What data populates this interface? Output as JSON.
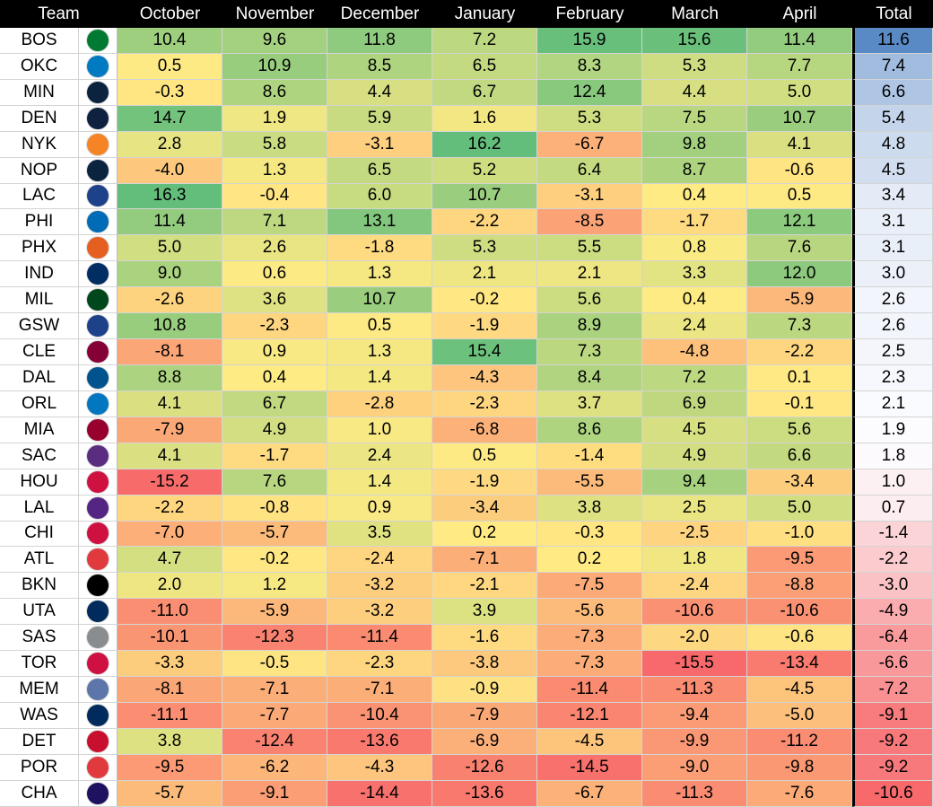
{
  "chart_data": {
    "type": "table",
    "columns": [
      "Team",
      "October",
      "November",
      "December",
      "January",
      "February",
      "March",
      "April",
      "Total"
    ],
    "rows": [
      {
        "team": "BOS",
        "icon": "celtics-logo-icon",
        "color": "#007a33",
        "values": [
          "10.4",
          "9.6",
          "11.8",
          "7.2",
          "15.9",
          "15.6",
          "11.4"
        ],
        "total": "11.6"
      },
      {
        "team": "OKC",
        "icon": "thunder-logo-icon",
        "color": "#007ac1",
        "values": [
          "0.5",
          "10.9",
          "8.5",
          "6.5",
          "8.3",
          "5.3",
          "7.7"
        ],
        "total": "7.4"
      },
      {
        "team": "MIN",
        "icon": "timberwolves-logo-icon",
        "color": "#0c2340",
        "values": [
          "-0.3",
          "8.6",
          "4.4",
          "6.7",
          "12.4",
          "4.4",
          "5.0"
        ],
        "total": "6.6"
      },
      {
        "team": "DEN",
        "icon": "nuggets-logo-icon",
        "color": "#0e2240",
        "values": [
          "14.7",
          "1.9",
          "5.9",
          "1.6",
          "5.3",
          "7.5",
          "10.7"
        ],
        "total": "5.4"
      },
      {
        "team": "NYK",
        "icon": "knicks-logo-icon",
        "color": "#f58426",
        "values": [
          "2.8",
          "5.8",
          "-3.1",
          "16.2",
          "-6.7",
          "9.8",
          "4.1"
        ],
        "total": "4.8"
      },
      {
        "team": "NOP",
        "icon": "pelicans-logo-icon",
        "color": "#0c2340",
        "values": [
          "-4.0",
          "1.3",
          "6.5",
          "5.2",
          "6.4",
          "8.7",
          "-0.6"
        ],
        "total": "4.5"
      },
      {
        "team": "LAC",
        "icon": "clippers-logo-icon",
        "color": "#1d428a",
        "values": [
          "16.3",
          "-0.4",
          "6.0",
          "10.7",
          "-3.1",
          "0.4",
          "0.5"
        ],
        "total": "3.4"
      },
      {
        "team": "PHI",
        "icon": "76ers-logo-icon",
        "color": "#006bb6",
        "values": [
          "11.4",
          "7.1",
          "13.1",
          "-2.2",
          "-8.5",
          "-1.7",
          "12.1"
        ],
        "total": "3.1"
      },
      {
        "team": "PHX",
        "icon": "suns-logo-icon",
        "color": "#e56020",
        "values": [
          "5.0",
          "2.6",
          "-1.8",
          "5.3",
          "5.5",
          "0.8",
          "7.6"
        ],
        "total": "3.1"
      },
      {
        "team": "IND",
        "icon": "pacers-logo-icon",
        "color": "#002d62",
        "values": [
          "9.0",
          "0.6",
          "1.3",
          "2.1",
          "2.1",
          "3.3",
          "12.0"
        ],
        "total": "3.0"
      },
      {
        "team": "MIL",
        "icon": "bucks-logo-icon",
        "color": "#00471b",
        "values": [
          "-2.6",
          "3.6",
          "10.7",
          "-0.2",
          "5.6",
          "0.4",
          "-5.9"
        ],
        "total": "2.6"
      },
      {
        "team": "GSW",
        "icon": "warriors-logo-icon",
        "color": "#1d428a",
        "values": [
          "10.8",
          "-2.3",
          "0.5",
          "-1.9",
          "8.9",
          "2.4",
          "7.3"
        ],
        "total": "2.6"
      },
      {
        "team": "CLE",
        "icon": "cavaliers-logo-icon",
        "color": "#860038",
        "values": [
          "-8.1",
          "0.9",
          "1.3",
          "15.4",
          "7.3",
          "-4.8",
          "-2.2"
        ],
        "total": "2.5"
      },
      {
        "team": "DAL",
        "icon": "mavericks-logo-icon",
        "color": "#00538c",
        "values": [
          "8.8",
          "0.4",
          "1.4",
          "-4.3",
          "8.4",
          "7.2",
          "0.1"
        ],
        "total": "2.3"
      },
      {
        "team": "ORL",
        "icon": "magic-logo-icon",
        "color": "#0077c0",
        "values": [
          "4.1",
          "6.7",
          "-2.8",
          "-2.3",
          "3.7",
          "6.9",
          "-0.1"
        ],
        "total": "2.1"
      },
      {
        "team": "MIA",
        "icon": "heat-logo-icon",
        "color": "#98002e",
        "values": [
          "-7.9",
          "4.9",
          "1.0",
          "-6.8",
          "8.6",
          "4.5",
          "5.6"
        ],
        "total": "1.9"
      },
      {
        "team": "SAC",
        "icon": "kings-logo-icon",
        "color": "#5a2d81",
        "values": [
          "4.1",
          "-1.7",
          "2.4",
          "0.5",
          "-1.4",
          "4.9",
          "6.6"
        ],
        "total": "1.8"
      },
      {
        "team": "HOU",
        "icon": "rockets-logo-icon",
        "color": "#ce1141",
        "values": [
          "-15.2",
          "7.6",
          "1.4",
          "-1.9",
          "-5.5",
          "9.4",
          "-3.4"
        ],
        "total": "1.0"
      },
      {
        "team": "LAL",
        "icon": "lakers-logo-icon",
        "color": "#552583",
        "values": [
          "-2.2",
          "-0.8",
          "0.9",
          "-3.4",
          "3.8",
          "2.5",
          "5.0"
        ],
        "total": "0.7"
      },
      {
        "team": "CHI",
        "icon": "bulls-logo-icon",
        "color": "#ce1141",
        "values": [
          "-7.0",
          "-5.7",
          "3.5",
          "0.2",
          "-0.3",
          "-2.5",
          "-1.0"
        ],
        "total": "-1.4"
      },
      {
        "team": "ATL",
        "icon": "hawks-logo-icon",
        "color": "#e03a3e",
        "values": [
          "4.7",
          "-0.2",
          "-2.4",
          "-7.1",
          "0.2",
          "1.8",
          "-9.5"
        ],
        "total": "-2.2"
      },
      {
        "team": "BKN",
        "icon": "nets-logo-icon",
        "color": "#000000",
        "values": [
          "2.0",
          "1.2",
          "-3.2",
          "-2.1",
          "-7.5",
          "-2.4",
          "-8.8"
        ],
        "total": "-3.0"
      },
      {
        "team": "UTA",
        "icon": "jazz-logo-icon",
        "color": "#002b5c",
        "values": [
          "-11.0",
          "-5.9",
          "-3.2",
          "3.9",
          "-5.6",
          "-10.6",
          "-10.6"
        ],
        "total": "-4.9"
      },
      {
        "team": "SAS",
        "icon": "spurs-logo-icon",
        "color": "#8a8d8f",
        "values": [
          "-10.1",
          "-12.3",
          "-11.4",
          "-1.6",
          "-7.3",
          "-2.0",
          "-0.6"
        ],
        "total": "-6.4"
      },
      {
        "team": "TOR",
        "icon": "raptors-logo-icon",
        "color": "#ce1141",
        "values": [
          "-3.3",
          "-0.5",
          "-2.3",
          "-3.8",
          "-7.3",
          "-15.5",
          "-13.4"
        ],
        "total": "-6.6"
      },
      {
        "team": "MEM",
        "icon": "grizzlies-logo-icon",
        "color": "#5d76a9",
        "values": [
          "-8.1",
          "-7.1",
          "-7.1",
          "-0.9",
          "-11.4",
          "-11.3",
          "-4.5"
        ],
        "total": "-7.2"
      },
      {
        "team": "WAS",
        "icon": "wizards-logo-icon",
        "color": "#002b5c",
        "values": [
          "-11.1",
          "-7.7",
          "-10.4",
          "-7.9",
          "-12.1",
          "-9.4",
          "-5.0"
        ],
        "total": "-9.1"
      },
      {
        "team": "DET",
        "icon": "pistons-logo-icon",
        "color": "#c8102e",
        "values": [
          "3.8",
          "-12.4",
          "-13.6",
          "-6.9",
          "-4.5",
          "-9.9",
          "-11.2"
        ],
        "total": "-9.2"
      },
      {
        "team": "POR",
        "icon": "trail-blazers-logo-icon",
        "color": "#e03a3e",
        "values": [
          "-9.5",
          "-6.2",
          "-4.3",
          "-12.6",
          "-14.5",
          "-9.0",
          "-9.8"
        ],
        "total": "-9.2"
      },
      {
        "team": "CHA",
        "icon": "hornets-logo-icon",
        "color": "#1d1160",
        "values": [
          "-5.7",
          "-9.1",
          "-14.4",
          "-13.6",
          "-6.7",
          "-11.3",
          "-7.6"
        ],
        "total": "-10.6"
      }
    ],
    "colors": {
      "high": "#63be7b",
      "mid": "#ffeb84",
      "low": "#f8696b",
      "total_high": "#5a8ac6",
      "total_mid": "#fcfcff",
      "total_low": "#f8696b"
    }
  }
}
